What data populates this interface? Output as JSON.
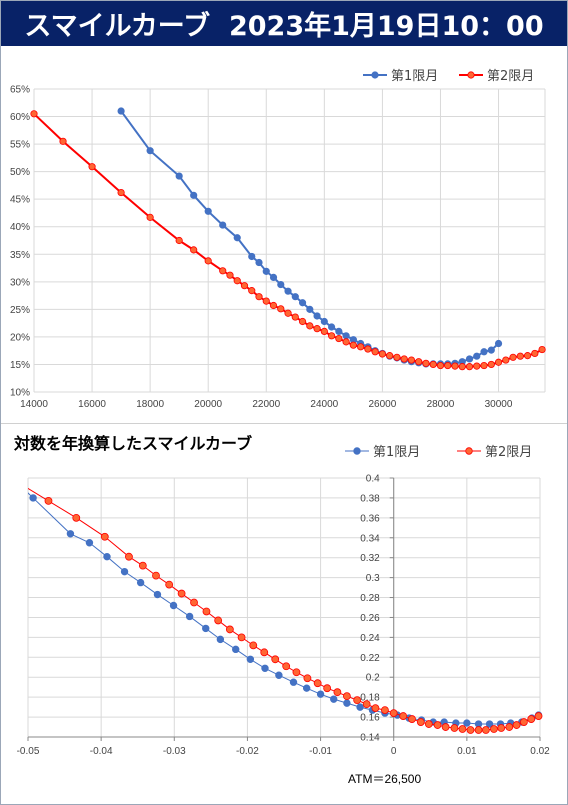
{
  "banner": {
    "title": "スマイルカーブ",
    "datetime": "2023年1月19日10：00"
  },
  "colors": {
    "series1": "#4472c4",
    "series2": "#ff0000",
    "series2_fill": "#ff6633",
    "banner_bg": "#082267",
    "grid": "#d9d9d9"
  },
  "chart_data": [
    {
      "type": "line",
      "title": "",
      "xlim": [
        14000,
        31600
      ],
      "ylim": [
        10,
        65
      ],
      "x_ticks": [
        14000,
        16000,
        18000,
        20000,
        22000,
        24000,
        26000,
        28000,
        30000
      ],
      "y_ticks": [
        "10%",
        "15%",
        "20%",
        "25%",
        "30%",
        "35%",
        "40%",
        "45%",
        "50%",
        "55%",
        "60%",
        "65%"
      ],
      "legend_position": "top-right",
      "series": [
        {
          "name": "第1限月",
          "x": [
            17000,
            18000,
            19000,
            19500,
            20000,
            20500,
            21000,
            21500,
            21750,
            22000,
            22250,
            22500,
            22750,
            23000,
            23250,
            23500,
            23750,
            24000,
            24250,
            24500,
            24750,
            25000,
            25250,
            25500,
            25750,
            26000,
            26250,
            26500,
            26750,
            27000,
            27250,
            27500,
            27750,
            28000,
            28250,
            28500,
            28750,
            29000,
            29250,
            29500,
            29750,
            30000
          ],
          "y": [
            61.0,
            53.8,
            49.2,
            45.7,
            42.8,
            40.3,
            38.0,
            34.6,
            33.5,
            31.9,
            30.8,
            29.5,
            28.3,
            27.3,
            26.2,
            25.0,
            23.8,
            22.8,
            21.8,
            21.0,
            20.2,
            19.5,
            18.8,
            18.2,
            17.5,
            17.0,
            16.5,
            16.2,
            15.8,
            15.5,
            15.3,
            15.1,
            15.1,
            15.1,
            15.1,
            15.2,
            15.5,
            16.0,
            16.5,
            17.3,
            17.6,
            18.8
          ]
        },
        {
          "name": "第2限月",
          "x": [
            14000,
            15000,
            16000,
            17000,
            18000,
            19000,
            19500,
            20000,
            20500,
            20750,
            21000,
            21250,
            21500,
            21750,
            22000,
            22250,
            22500,
            22750,
            23000,
            23250,
            23500,
            23750,
            24000,
            24250,
            24500,
            24750,
            25000,
            25250,
            25500,
            25750,
            26000,
            26250,
            26500,
            26750,
            27000,
            27250,
            27500,
            27750,
            28000,
            28250,
            28500,
            28750,
            29000,
            29250,
            29500,
            29750,
            30000,
            30250,
            30500,
            30750,
            31000,
            31250,
            31500
          ],
          "y": [
            60.5,
            55.5,
            50.9,
            46.2,
            41.7,
            37.5,
            35.8,
            33.8,
            32.0,
            31.2,
            30.2,
            29.3,
            28.4,
            27.3,
            26.5,
            25.7,
            25.1,
            24.3,
            23.6,
            22.8,
            22.0,
            21.5,
            21.0,
            20.2,
            19.7,
            19.1,
            18.5,
            18.2,
            17.8,
            17.3,
            16.9,
            16.6,
            16.3,
            16.0,
            15.8,
            15.5,
            15.2,
            15.0,
            14.8,
            14.8,
            14.7,
            14.6,
            14.6,
            14.7,
            14.8,
            15.0,
            15.4,
            15.8,
            16.3,
            16.5,
            16.6,
            17.0,
            17.7
          ]
        }
      ]
    },
    {
      "type": "line",
      "title": "対数を年換算したスマイルカーブ",
      "xlim": [
        -0.05,
        0.02
      ],
      "ylim": [
        0.14,
        0.4
      ],
      "x_ticks": [
        "-0.05",
        "-0.04",
        "-0.03",
        "-0.02",
        "-0.01",
        "0",
        "0.01",
        "0.02"
      ],
      "y_ticks": [
        "0.14",
        "0.16",
        "0.18",
        "0.2",
        "0.22",
        "0.24",
        "0.26",
        "0.28",
        "0.3",
        "0.32",
        "0.34",
        "0.36",
        "0.38",
        "0.4"
      ],
      "legend_position": "top-right",
      "annotation": "ATM＝26,500",
      "series": [
        {
          "name": "第1限月",
          "x": [
            -0.0493,
            -0.0442,
            -0.0416,
            -0.0392,
            -0.0368,
            -0.0346,
            -0.0323,
            -0.0301,
            -0.0279,
            -0.0257,
            -0.0237,
            -0.0216,
            -0.0196,
            -0.0176,
            -0.0157,
            -0.0137,
            -0.0119,
            -0.01,
            -0.0082,
            -0.0064,
            -0.0046,
            -0.0029,
            -0.0012,
            0.0005,
            0.0021,
            0.0038,
            0.0054,
            0.0069,
            0.0085,
            0.01,
            0.0116,
            0.0131,
            0.0146,
            0.016,
            0.0175,
            0.0189,
            0.0198
          ],
          "y": [
            0.38,
            0.344,
            0.335,
            0.321,
            0.306,
            0.295,
            0.283,
            0.272,
            0.261,
            0.249,
            0.238,
            0.228,
            0.218,
            0.209,
            0.202,
            0.195,
            0.189,
            0.183,
            0.178,
            0.174,
            0.17,
            0.167,
            0.164,
            0.162,
            0.159,
            0.157,
            0.155,
            0.155,
            0.154,
            0.154,
            0.153,
            0.153,
            0.153,
            0.154,
            0.155,
            0.159,
            0.162
          ]
        },
        {
          "name": "第2限月",
          "x": [
            -0.0472,
            -0.0434,
            -0.0395,
            -0.0362,
            -0.0343,
            -0.0325,
            -0.0307,
            -0.029,
            -0.0273,
            -0.0256,
            -0.024,
            -0.0224,
            -0.0208,
            -0.0192,
            -0.0177,
            -0.0162,
            -0.0147,
            -0.0133,
            -0.0118,
            -0.0104,
            -0.0091,
            -0.0077,
            -0.0064,
            -0.005,
            -0.0037,
            -0.0025,
            -0.0012,
            0.0,
            0.0013,
            0.0025,
            0.0037,
            0.0048,
            0.006,
            0.0071,
            0.0083,
            0.0094,
            0.0105,
            0.0116,
            0.0126,
            0.0137,
            0.0147,
            0.0158,
            0.0168,
            0.0178,
            0.0188,
            0.0198
          ],
          "y": [
            0.377,
            0.36,
            0.341,
            0.321,
            0.312,
            0.302,
            0.293,
            0.284,
            0.275,
            0.266,
            0.257,
            0.248,
            0.24,
            0.232,
            0.225,
            0.218,
            0.211,
            0.205,
            0.199,
            0.194,
            0.189,
            0.185,
            0.181,
            0.177,
            0.173,
            0.169,
            0.167,
            0.164,
            0.161,
            0.158,
            0.155,
            0.153,
            0.152,
            0.15,
            0.149,
            0.148,
            0.147,
            0.147,
            0.147,
            0.148,
            0.149,
            0.15,
            0.152,
            0.155,
            0.158,
            0.161
          ]
        }
      ]
    }
  ]
}
